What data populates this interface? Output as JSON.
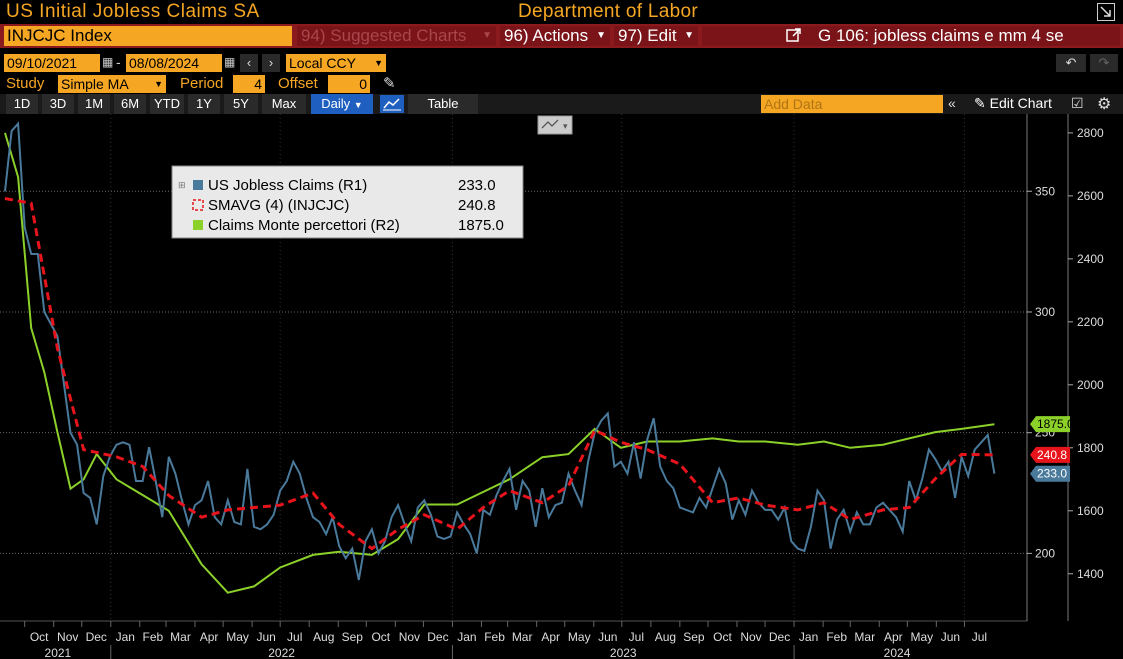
{
  "header": {
    "title": "US Initial Jobless Claims SA",
    "source": "Department of Labor"
  },
  "toolbar": {
    "ticker": "INJCJC Index",
    "suggested_charts": "94) Suggested Charts",
    "actions": "96) Actions",
    "edit": "97) Edit",
    "description": "G 106: jobless claims e mm 4 se",
    "start_date": "09/10/2021",
    "end_date": "08/08/2024",
    "currency": "Local CCY",
    "study_label": "Study",
    "study_value": "Simple MA",
    "period_label": "Period",
    "period_value": "4",
    "offset_label": "Offset",
    "offset_value": "0",
    "ranges": [
      "1D",
      "3D",
      "1M",
      "6M",
      "YTD",
      "1Y",
      "5Y",
      "Max"
    ],
    "frequency": "Daily",
    "table_label": "Table",
    "add_data_placeholder": "Add Data",
    "edit_chart": "Edit Chart"
  },
  "colors": {
    "claims": "#4a7a9b",
    "smavg": "#e8141c",
    "monte": "#8cd12a",
    "amber": "#f5a623",
    "barred": "#8b1a1f"
  },
  "chart_data": {
    "type": "line",
    "legend": [
      {
        "label": "US Jobless Claims  (R1)",
        "value": "233.0"
      },
      {
        "label": "SMAVG (4) (INJCJC)",
        "value": "240.8"
      },
      {
        "label": "Claims Monte percettori  (R2)",
        "value": "1875.0"
      }
    ],
    "last_value_tags": {
      "claims": "233.0",
      "smavg": "240.8",
      "monte": "1875.0"
    },
    "x_range": [
      "2021-09-10",
      "2024-08-08"
    ],
    "month_labels": [
      "Oct",
      "Nov",
      "Dec",
      "Jan",
      "Feb",
      "Mar",
      "Apr",
      "May",
      "Jun",
      "Jul",
      "Aug",
      "Sep",
      "Oct",
      "Nov",
      "Dec",
      "Jan",
      "Feb",
      "Mar",
      "Apr",
      "May",
      "Jun",
      "Jul",
      "Aug",
      "Sep",
      "Oct",
      "Nov",
      "Dec",
      "Jan",
      "Feb",
      "Mar",
      "Apr",
      "May",
      "Jun",
      "Jul"
    ],
    "year_labels": [
      "2021",
      "2022",
      "2023",
      "2024"
    ],
    "axis_r1": {
      "ticks": [
        200,
        250,
        300,
        350
      ],
      "range": [
        172,
        382
      ]
    },
    "axis_r2": {
      "ticks": [
        1400,
        1600,
        1800,
        2000,
        2200,
        2400,
        2600,
        2800
      ],
      "range": [
        1250,
        2860
      ]
    },
    "grid": true,
    "series": [
      {
        "name": "US Jobless Claims",
        "axis": "R1",
        "x": [
          "2021-09-10",
          "2021-09-17",
          "2021-09-24",
          "2021-10-01",
          "2021-10-08",
          "2021-10-15",
          "2021-10-22",
          "2021-10-29",
          "2021-11-05",
          "2021-11-12",
          "2021-11-19",
          "2021-11-26",
          "2021-12-03",
          "2021-12-10",
          "2021-12-17",
          "2021-12-24",
          "2021-12-31",
          "2022-01-07",
          "2022-01-14",
          "2022-01-21",
          "2022-01-28",
          "2022-02-04",
          "2022-02-11",
          "2022-02-18",
          "2022-02-25",
          "2022-03-04",
          "2022-03-11",
          "2022-03-18",
          "2022-03-25",
          "2022-04-01",
          "2022-04-08",
          "2022-04-15",
          "2022-04-22",
          "2022-04-29",
          "2022-05-06",
          "2022-05-13",
          "2022-05-20",
          "2022-05-27",
          "2022-06-03",
          "2022-06-10",
          "2022-06-17",
          "2022-06-24",
          "2022-07-01",
          "2022-07-08",
          "2022-07-15",
          "2022-07-22",
          "2022-07-29",
          "2022-08-05",
          "2022-08-12",
          "2022-08-19",
          "2022-08-26",
          "2022-09-02",
          "2022-09-09",
          "2022-09-16",
          "2022-09-23",
          "2022-09-30",
          "2022-10-07",
          "2022-10-14",
          "2022-10-21",
          "2022-10-28",
          "2022-11-04",
          "2022-11-11",
          "2022-11-18",
          "2022-11-25",
          "2022-12-02",
          "2022-12-09",
          "2022-12-16",
          "2022-12-23",
          "2022-12-30",
          "2023-01-06",
          "2023-01-13",
          "2023-01-20",
          "2023-01-27",
          "2023-02-03",
          "2023-02-10",
          "2023-02-17",
          "2023-02-24",
          "2023-03-03",
          "2023-03-10",
          "2023-03-17",
          "2023-03-24",
          "2023-03-31",
          "2023-04-07",
          "2023-04-14",
          "2023-04-21",
          "2023-04-28",
          "2023-05-05",
          "2023-05-12",
          "2023-05-19",
          "2023-05-26",
          "2023-06-02",
          "2023-06-09",
          "2023-06-16",
          "2023-06-23",
          "2023-06-30",
          "2023-07-07",
          "2023-07-14",
          "2023-07-21",
          "2023-07-28",
          "2023-08-04",
          "2023-08-11",
          "2023-08-18",
          "2023-08-25",
          "2023-09-01",
          "2023-09-08",
          "2023-09-15",
          "2023-09-22",
          "2023-09-29",
          "2023-10-06",
          "2023-10-13",
          "2023-10-20",
          "2023-10-27",
          "2023-11-03",
          "2023-11-10",
          "2023-11-17",
          "2023-11-24",
          "2023-12-01",
          "2023-12-08",
          "2023-12-15",
          "2023-12-22",
          "2023-12-29",
          "2024-01-05",
          "2024-01-12",
          "2024-01-19",
          "2024-01-26",
          "2024-02-02",
          "2024-02-09",
          "2024-02-16",
          "2024-02-23",
          "2024-03-01",
          "2024-03-08",
          "2024-03-15",
          "2024-03-22",
          "2024-03-29",
          "2024-04-05",
          "2024-04-12",
          "2024-04-19",
          "2024-04-26",
          "2024-05-03",
          "2024-05-10",
          "2024-05-17",
          "2024-05-24",
          "2024-05-31",
          "2024-06-07",
          "2024-06-14",
          "2024-06-21",
          "2024-06-28",
          "2024-07-05",
          "2024-07-12",
          "2024-07-19",
          "2024-07-26",
          "2024-08-02"
        ],
        "values": [
          350,
          375,
          378,
          335,
          324,
          324,
          300,
          295,
          290,
          270,
          250,
          245,
          225,
          223,
          212,
          232,
          240,
          245,
          246,
          245,
          230,
          230,
          244,
          230,
          215,
          240,
          233,
          222,
          212,
          220,
          222,
          230,
          215,
          212,
          222,
          213,
          212,
          235,
          211,
          210,
          212,
          216,
          226,
          230,
          238,
          233,
          223,
          215,
          213,
          208,
          215,
          203,
          198,
          202,
          189,
          205,
          210,
          200,
          205,
          215,
          220,
          212,
          205,
          219,
          222,
          216,
          207,
          206,
          207,
          217,
          212,
          208,
          200,
          218,
          216,
          224,
          230,
          235,
          218,
          230,
          226,
          211,
          227,
          215,
          220,
          221,
          233,
          226,
          220,
          238,
          250,
          255,
          258,
          236,
          238,
          233,
          246,
          231,
          247,
          256,
          236,
          230,
          227,
          219,
          218,
          217,
          223,
          219,
          227,
          235,
          229,
          214,
          222,
          216,
          226,
          221,
          218,
          218,
          214,
          219,
          205,
          202,
          201,
          211,
          226,
          222,
          202,
          214,
          218,
          209,
          217,
          212,
          212,
          219,
          221,
          218,
          215,
          209,
          230,
          222,
          231,
          243,
          239,
          234,
          238,
          223,
          240,
          232,
          243,
          246,
          249,
          233
        ]
      },
      {
        "name": "SMAVG (4) (INJCJC)",
        "axis": "R1",
        "x": [
          "2021-09-10",
          "2021-10-08",
          "2021-11-05",
          "2021-12-03",
          "2022-01-07",
          "2022-02-04",
          "2022-03-04",
          "2022-04-08",
          "2022-05-06",
          "2022-06-03",
          "2022-07-01",
          "2022-08-05",
          "2022-09-02",
          "2022-10-07",
          "2022-11-04",
          "2022-12-02",
          "2023-01-06",
          "2023-02-03",
          "2023-03-03",
          "2023-04-07",
          "2023-05-05",
          "2023-06-02",
          "2023-06-30",
          "2023-07-28",
          "2023-09-01",
          "2023-10-06",
          "2023-11-03",
          "2023-12-01",
          "2024-01-05",
          "2024-02-02",
          "2024-03-01",
          "2024-04-05",
          "2024-05-03",
          "2024-05-31",
          "2024-06-28",
          "2024-08-02"
        ],
        "values": [
          347,
          345,
          285,
          243,
          240,
          236,
          224,
          215,
          218,
          219,
          220,
          225,
          212,
          202,
          210,
          216,
          210,
          219,
          226,
          221,
          228,
          251,
          246,
          243,
          237,
          221,
          223,
          220,
          218,
          221,
          214,
          218,
          219,
          231,
          241,
          240.8
        ]
      },
      {
        "name": "Claims Monte percettori",
        "axis": "R2",
        "x": [
          "2021-09-10",
          "2021-09-24",
          "2021-10-08",
          "2021-10-22",
          "2021-11-05",
          "2021-11-19",
          "2021-12-03",
          "2021-12-17",
          "2022-01-07",
          "2022-02-04",
          "2022-03-04",
          "2022-04-08",
          "2022-05-06",
          "2022-06-03",
          "2022-07-01",
          "2022-08-05",
          "2022-09-02",
          "2022-10-07",
          "2022-11-04",
          "2022-12-02",
          "2023-01-06",
          "2023-02-03",
          "2023-03-03",
          "2023-04-07",
          "2023-05-05",
          "2023-06-02",
          "2023-06-30",
          "2023-07-28",
          "2023-09-01",
          "2023-10-06",
          "2023-11-03",
          "2023-12-01",
          "2024-01-05",
          "2024-02-02",
          "2024-03-01",
          "2024-04-05",
          "2024-05-03",
          "2024-05-31",
          "2024-06-28",
          "2024-08-02"
        ],
        "values": [
          2800,
          2660,
          2180,
          2040,
          1850,
          1670,
          1700,
          1780,
          1700,
          1650,
          1600,
          1430,
          1340,
          1360,
          1420,
          1460,
          1470,
          1460,
          1510,
          1620,
          1620,
          1660,
          1700,
          1770,
          1780,
          1860,
          1800,
          1820,
          1820,
          1830,
          1820,
          1820,
          1810,
          1820,
          1800,
          1810,
          1830,
          1850,
          1860,
          1875
        ]
      }
    ]
  }
}
